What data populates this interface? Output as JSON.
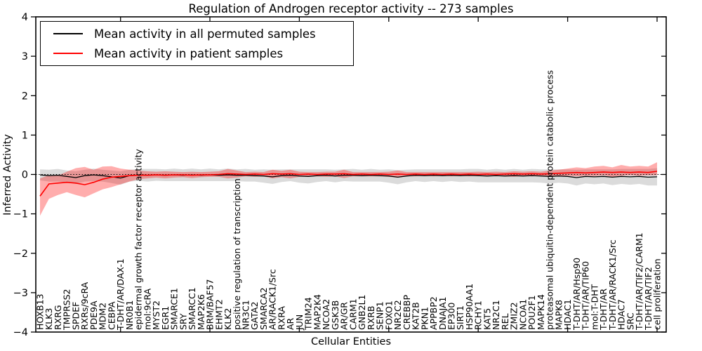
{
  "title": "Regulation of Androgen receptor activity -- 273 samples",
  "legend": [
    {
      "label": "Mean activity in all permuted samples",
      "color": "#000000"
    },
    {
      "label": "Mean activity in patient samples",
      "color": "#ff0000"
    }
  ],
  "chart_data": {
    "type": "line",
    "title": "Regulation of Androgen receptor activity -- 273 samples",
    "xlabel": "Cellular Entities",
    "ylabel": "Inferred Activity",
    "ylim": [
      -4,
      4
    ],
    "yticks": [
      -4,
      -3,
      -2,
      -1,
      0,
      1,
      2,
      3,
      4
    ],
    "grid": false,
    "legend_position": "upper left",
    "zero_line": {
      "y": 0,
      "style": "dotted",
      "color": "#000000"
    },
    "categories": [
      "HOXB13",
      "KLK3",
      "RXRG",
      "TMPRSS2",
      "SPDEF",
      "RXRs/9cRA",
      "PDE9A",
      "MDM2",
      "CEBPA",
      "T-DHT/AR/DAX-1",
      "NR0B1",
      "epidermal growth factor receptor activity",
      "mol:9cRA",
      "MYST2",
      "EGR1",
      "SMARCE1",
      "SRY",
      "SMARCC1",
      "MAP2K6",
      "BRM/BAF57",
      "EHMT2",
      "KLK2",
      "positive regulation of transcription",
      "NR3C1",
      "GATA2",
      "SMARCA2",
      "AR/RACK1/Src",
      "RXRA",
      "AR",
      "JUN",
      "TRIM24",
      "MAP2K4",
      "NCOA2",
      "GSK3B",
      "AR/GR",
      "CARM1",
      "GNB2L1",
      "RXRB",
      "SENP1",
      "FOXO1",
      "NR2C2",
      "CREBBP",
      "KAT2B",
      "PKN1",
      "APPBP2",
      "DNAJA1",
      "EP300",
      "SIRT1",
      "HSP90AA1",
      "RCHY1",
      "KAT5",
      "NR2C1",
      "REL",
      "ZMIZ2",
      "NCOA1",
      "POU2F1",
      "MAPK14",
      "proteasomal ubiquitin-dependent protein catabolic process",
      "MAPK8",
      "HDAC1",
      "T-DHT/AR/Hsp90",
      "T-DHT/AR/TIP60",
      "mol:T-DHT",
      "T-DHT/AR",
      "T-DHT/AR/RACK1/Src",
      "HDAC7",
      "SRC",
      "T-DHT/AR/TIF2/CARM1",
      "T-DHT/AR/TIF2",
      "cell proliferation"
    ],
    "series": [
      {
        "name": "Mean activity in all permuted samples",
        "color": "#000000",
        "width": 1.3,
        "line_name": "permuted-mean-line",
        "band_name": "permuted-std-band",
        "band_color": "rgba(0,0,0,0.14)",
        "values": [
          -0.01,
          -0.03,
          -0.02,
          -0.05,
          -0.08,
          -0.03,
          -0.01,
          -0.03,
          -0.06,
          -0.09,
          -0.03,
          -0.01,
          -0.02,
          -0.01,
          -0.02,
          -0.01,
          -0.02,
          -0.01,
          -0.02,
          -0.01,
          -0.02,
          -0.01,
          -0.02,
          -0.02,
          -0.03,
          -0.04,
          -0.06,
          -0.03,
          -0.02,
          -0.04,
          -0.05,
          -0.03,
          -0.02,
          -0.04,
          -0.02,
          -0.02,
          -0.03,
          -0.02,
          -0.03,
          -0.04,
          -0.07,
          -0.04,
          -0.02,
          -0.03,
          -0.02,
          -0.03,
          -0.02,
          -0.03,
          -0.02,
          -0.03,
          -0.04,
          -0.03,
          -0.04,
          -0.03,
          -0.04,
          -0.03,
          -0.04,
          -0.05,
          -0.04,
          -0.05,
          -0.08,
          -0.05,
          -0.06,
          -0.05,
          -0.07,
          -0.05,
          -0.06,
          -0.05,
          -0.07,
          -0.06
        ],
        "band_upper": [
          0.13,
          0.12,
          0.14,
          0.1,
          0.08,
          0.12,
          0.15,
          0.12,
          0.1,
          0.08,
          0.12,
          0.14,
          0.14,
          0.14,
          0.13,
          0.15,
          0.13,
          0.15,
          0.13,
          0.15,
          0.13,
          0.15,
          0.13,
          0.14,
          0.12,
          0.13,
          0.12,
          0.13,
          0.13,
          0.13,
          0.13,
          0.13,
          0.13,
          0.12,
          0.13,
          0.14,
          0.12,
          0.14,
          0.12,
          0.13,
          0.11,
          0.12,
          0.13,
          0.13,
          0.13,
          0.13,
          0.13,
          0.13,
          0.14,
          0.14,
          0.12,
          0.14,
          0.12,
          0.14,
          0.12,
          0.14,
          0.13,
          0.13,
          0.13,
          0.13,
          0.12,
          0.13,
          0.13,
          0.13,
          0.13,
          0.14,
          0.14,
          0.14,
          0.14,
          0.16
        ],
        "band_lower": [
          -0.15,
          -0.18,
          -0.18,
          -0.2,
          -0.24,
          -0.18,
          -0.17,
          -0.18,
          -0.22,
          -0.26,
          -0.18,
          -0.16,
          -0.18,
          -0.16,
          -0.17,
          -0.17,
          -0.17,
          -0.17,
          -0.17,
          -0.17,
          -0.17,
          -0.17,
          -0.17,
          -0.18,
          -0.18,
          -0.21,
          -0.24,
          -0.19,
          -0.17,
          -0.21,
          -0.23,
          -0.19,
          -0.17,
          -0.2,
          -0.17,
          -0.18,
          -0.18,
          -0.18,
          -0.18,
          -0.21,
          -0.25,
          -0.2,
          -0.17,
          -0.19,
          -0.17,
          -0.19,
          -0.17,
          -0.19,
          -0.18,
          -0.2,
          -0.2,
          -0.2,
          -0.2,
          -0.2,
          -0.2,
          -0.2,
          -0.21,
          -0.23,
          -0.21,
          -0.23,
          -0.28,
          -0.23,
          -0.25,
          -0.23,
          -0.27,
          -0.24,
          -0.26,
          -0.24,
          -0.28,
          -0.28
        ]
      },
      {
        "name": "Mean activity in patient samples",
        "color": "#ff0000",
        "width": 1.6,
        "line_name": "patient-mean-line",
        "band_name": "patient-std-band",
        "band_color": "rgba(255,0,0,0.32)",
        "values": [
          -0.55,
          -0.24,
          -0.22,
          -0.2,
          -0.22,
          -0.26,
          -0.2,
          -0.12,
          -0.07,
          -0.05,
          -0.03,
          -0.02,
          -0.02,
          -0.01,
          -0.02,
          -0.01,
          -0.01,
          -0.02,
          -0.01,
          -0.01,
          0.0,
          0.02,
          0.01,
          0.0,
          0.01,
          0.0,
          0.02,
          0.01,
          0.02,
          0.0,
          0.01,
          0.0,
          0.01,
          0.01,
          0.02,
          0.0,
          0.01,
          0.0,
          0.01,
          0.0,
          0.01,
          0.0,
          0.01,
          0.0,
          0.01,
          0.0,
          0.01,
          0.0,
          0.01,
          0.0,
          0.01,
          0.0,
          0.01,
          0.02,
          0.01,
          0.02,
          0.01,
          0.02,
          0.03,
          0.04,
          0.05,
          0.04,
          0.05,
          0.06,
          0.05,
          0.06,
          0.05,
          0.06,
          0.05,
          0.08
        ],
        "band_upper": [
          -0.1,
          -0.02,
          -0.03,
          0.07,
          0.16,
          0.19,
          0.12,
          0.2,
          0.21,
          0.15,
          0.12,
          0.1,
          0.08,
          0.07,
          0.08,
          0.07,
          0.06,
          0.07,
          0.06,
          0.07,
          0.08,
          0.14,
          0.1,
          0.06,
          0.07,
          0.06,
          0.12,
          0.09,
          0.12,
          0.07,
          0.06,
          0.06,
          0.07,
          0.07,
          0.12,
          0.06,
          0.06,
          0.06,
          0.06,
          0.07,
          0.1,
          0.06,
          0.06,
          0.06,
          0.06,
          0.06,
          0.06,
          0.06,
          0.06,
          0.07,
          0.06,
          0.07,
          0.06,
          0.08,
          0.07,
          0.08,
          0.07,
          0.1,
          0.12,
          0.15,
          0.18,
          0.16,
          0.2,
          0.22,
          0.18,
          0.24,
          0.2,
          0.22,
          0.2,
          0.31
        ],
        "band_lower": [
          -1.05,
          -0.62,
          -0.52,
          -0.45,
          -0.52,
          -0.58,
          -0.48,
          -0.38,
          -0.32,
          -0.25,
          -0.18,
          -0.12,
          -0.1,
          -0.08,
          -0.1,
          -0.08,
          -0.07,
          -0.09,
          -0.07,
          -0.06,
          -0.06,
          -0.1,
          -0.08,
          -0.05,
          -0.06,
          -0.05,
          -0.1,
          -0.07,
          -0.1,
          -0.06,
          -0.05,
          -0.05,
          -0.06,
          -0.05,
          -0.09,
          -0.05,
          -0.05,
          -0.05,
          -0.05,
          -0.06,
          -0.08,
          -0.05,
          -0.05,
          -0.04,
          -0.05,
          -0.04,
          -0.05,
          -0.04,
          -0.05,
          -0.04,
          -0.05,
          -0.04,
          -0.05,
          -0.06,
          -0.04,
          -0.05,
          -0.04,
          -0.06,
          -0.04,
          -0.03,
          -0.05,
          -0.03,
          -0.04,
          -0.02,
          -0.06,
          -0.03,
          -0.02,
          -0.03,
          -0.02,
          -0.02
        ]
      }
    ]
  }
}
